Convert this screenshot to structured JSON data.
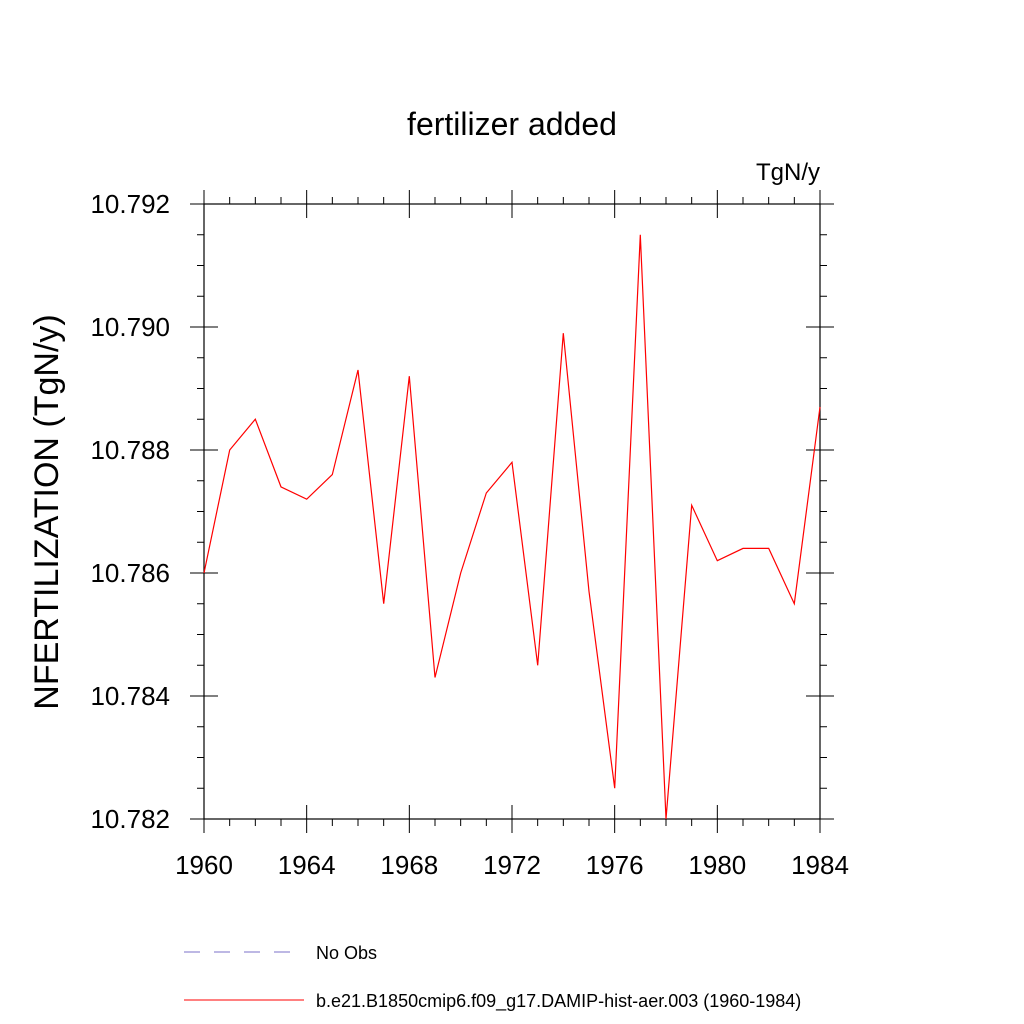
{
  "chart_data": {
    "type": "line",
    "title": "fertilizer added",
    "units_label": "TgN/y",
    "ylabel": "NFERTILIZATION  (TgN/y)",
    "xlabel": "",
    "xlim": [
      1960,
      1984
    ],
    "ylim": [
      10.782,
      10.792
    ],
    "x_ticks": [
      1960,
      1964,
      1968,
      1972,
      1976,
      1980,
      1984
    ],
    "y_ticks": [
      10.782,
      10.784,
      10.786,
      10.788,
      10.79,
      10.792
    ],
    "y_tick_labels": [
      "10.782",
      "10.784",
      "10.786",
      "10.788",
      "10.790",
      "10.792"
    ],
    "grid": false,
    "legend_position": "bottom",
    "series": [
      {
        "name": "b.e21.B1850cmip6.f09_g17.DAMIP-hist-aer.003 (1960-1984)",
        "color": "#ff0000",
        "dash": "solid",
        "x": [
          1960,
          1961,
          1962,
          1963,
          1964,
          1965,
          1966,
          1967,
          1968,
          1969,
          1970,
          1971,
          1972,
          1973,
          1974,
          1975,
          1976,
          1977,
          1978,
          1979,
          1980,
          1981,
          1982,
          1983,
          1984
        ],
        "values": [
          10.786,
          10.788,
          10.7885,
          10.7874,
          10.7872,
          10.7876,
          10.7893,
          10.7855,
          10.7892,
          10.7843,
          10.786,
          10.7873,
          10.7878,
          10.7845,
          10.7899,
          10.7857,
          10.7825,
          10.7915,
          10.782,
          10.7871,
          10.7862,
          10.7864,
          10.7864,
          10.7855,
          10.7887
        ]
      }
    ],
    "legend": [
      {
        "label": "No Obs",
        "color": "#7b72c8",
        "dash": "dashed"
      },
      {
        "label": "b.e21.B1850cmip6.f09_g17.DAMIP-hist-aer.003 (1960-1984)",
        "color": "#ff0000",
        "dash": "solid"
      }
    ]
  }
}
